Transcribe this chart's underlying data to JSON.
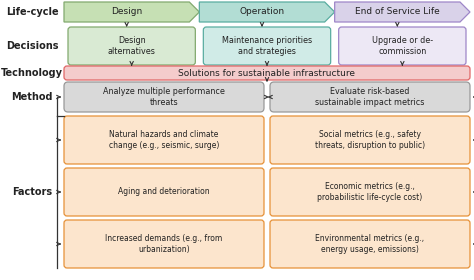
{
  "bg_color": "#ffffff",
  "lifecycle_boxes": [
    {
      "text": "Design",
      "color": "#c6e0b4",
      "border": "#82a96e"
    },
    {
      "text": "Operation",
      "color": "#b2ddd4",
      "border": "#5aada0"
    },
    {
      "text": "End of Service Life",
      "color": "#d9d2e9",
      "border": "#9e86c8"
    }
  ],
  "decision_boxes": [
    {
      "text": "Design\nalternatives",
      "color": "#d9ead3",
      "border": "#82a96e"
    },
    {
      "text": "Maintenance priorities\nand strategies",
      "color": "#d0ebe7",
      "border": "#5aada0"
    },
    {
      "text": "Upgrade or de-\ncommission",
      "color": "#ede8f5",
      "border": "#9e86c8"
    }
  ],
  "technology_box": {
    "text": "Solutions for sustainable infrastructure",
    "color": "#f4cccc",
    "border": "#e06666"
  },
  "method_boxes": [
    {
      "text": "Analyze multiple performance\nthreats",
      "color": "#d9d9d9",
      "border": "#999999"
    },
    {
      "text": "Evaluate risk-based\nsustainable impact metrics",
      "color": "#d9d9d9",
      "border": "#999999"
    }
  ],
  "factor_left": [
    {
      "text": "Natural hazards and climate\nchange (e.g., seismic, surge)"
    },
    {
      "text": "Aging and deterioration"
    },
    {
      "text": "Increased demands (e.g., from\nurbanization)"
    }
  ],
  "factor_right": [
    {
      "text": "Social metrics (e.g., safety\nthreats, disruption to public)"
    },
    {
      "text": "Economic metrics (e.g.,\nprobabilistic life-cycle cost)"
    },
    {
      "text": "Environmental metrics (e.g.,\nenergy usage, emissions)"
    }
  ],
  "factor_color": "#fce5cd",
  "factor_border": "#e69138",
  "row_labels": [
    "Life-cycle",
    "Decisions",
    "Technology",
    "Method",
    "Factors"
  ],
  "arrow_color": "#333333"
}
